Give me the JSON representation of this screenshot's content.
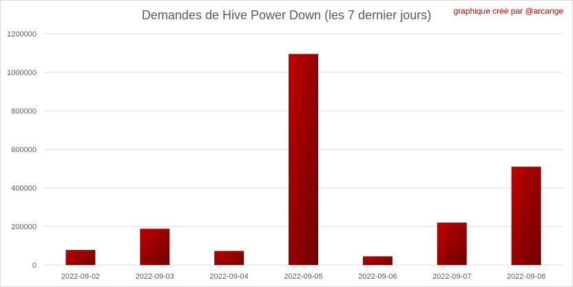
{
  "chart_data": {
    "type": "bar",
    "title": "Demandes de Hive Power Down (les 7 dernier jours)",
    "annotation": "graphique créé par @arcange",
    "categories": [
      "2022-09-02",
      "2022-09-03",
      "2022-09-04",
      "2022-09-05",
      "2022-09-06",
      "2022-09-07",
      "2022-09-08"
    ],
    "values": [
      78000,
      188000,
      73000,
      1095000,
      45000,
      220000,
      510000
    ],
    "ylim": [
      0,
      1200000
    ],
    "yticks": [
      0,
      200000,
      400000,
      600000,
      800000,
      1000000,
      1200000
    ],
    "grid": true,
    "legend": "none",
    "colors": {
      "bar_light": "#c00000",
      "bar_dark": "#6e0000",
      "grid": "#d9d9d9",
      "text": "#595959",
      "credit": "#c00000"
    }
  }
}
